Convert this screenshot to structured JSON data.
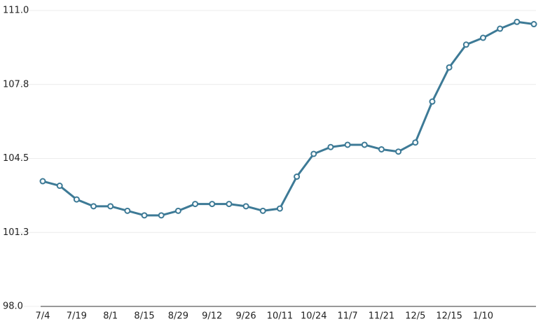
{
  "chart_data": {
    "type": "line",
    "categories": [
      "7/4",
      null,
      "7/19",
      null,
      "8/1",
      null,
      "8/15",
      null,
      "8/29",
      null,
      "9/12",
      null,
      "9/26",
      null,
      "10/11",
      null,
      "10/24",
      null,
      "11/7",
      null,
      "11/21",
      null,
      "12/5",
      null,
      "12/15",
      null,
      "1/10",
      null,
      null,
      null
    ],
    "series": [
      {
        "color": "#3d7a96",
        "values": [
          103.5,
          103.3,
          102.7,
          102.4,
          102.4,
          102.2,
          102.0,
          102.0,
          102.2,
          102.5,
          102.5,
          102.5,
          102.4,
          102.2,
          102.3,
          103.7,
          104.7,
          105.0,
          105.1,
          105.1,
          104.9,
          104.8,
          105.2,
          107.0,
          108.5,
          109.5,
          109.8,
          110.2,
          110.5,
          110.4
        ]
      }
    ],
    "ylim": [
      98,
      111
    ],
    "yticks": [
      {
        "value": 98,
        "label": "98.0"
      },
      {
        "value": 101.25,
        "label": "101.3"
      },
      104.5,
      {
        "value": 107.75,
        "label": "107.8"
      },
      {
        "value": 111,
        "label": "111.0"
      }
    ],
    "grid": true
  }
}
